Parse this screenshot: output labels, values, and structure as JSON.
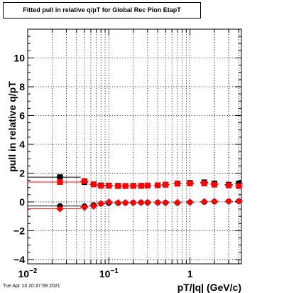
{
  "title": "Fitted pull in relative q/pT for Global Rec Pion EtapT",
  "timestamp": "Tue Apr 13 10:37:59 2021",
  "chart_data": {
    "type": "scatter",
    "title": "Fitted pull in relative q/pT for Global Rec Pion EtapT",
    "xlabel": "pT/|q| (GeV/c)",
    "ylabel": "pull in relative q/pT",
    "x_scale": "log",
    "xlim": [
      0.01,
      4.3
    ],
    "ylim": [
      -4.3,
      12
    ],
    "grid": true,
    "x_ticks": [
      {
        "value": 0.01,
        "base": "10",
        "exp": "−2"
      },
      {
        "value": 0.1,
        "base": "10",
        "exp": "−1"
      },
      {
        "value": 1,
        "base": "1",
        "exp": ""
      }
    ],
    "y_ticks": [
      -4,
      -2,
      0,
      2,
      4,
      6,
      8,
      10
    ],
    "series": [
      {
        "role": "width",
        "color": "#000000",
        "marker": "square",
        "x": [
          0.025,
          0.05,
          0.065,
          0.08,
          0.1,
          0.13,
          0.16,
          0.2,
          0.25,
          0.3,
          0.4,
          0.5,
          0.7,
          1.0,
          1.5,
          2.0,
          3.0,
          4.0
        ],
        "y": [
          1.72,
          1.38,
          1.22,
          1.15,
          1.14,
          1.12,
          1.11,
          1.12,
          1.12,
          1.14,
          1.16,
          1.2,
          1.28,
          1.32,
          1.36,
          1.28,
          1.2,
          1.28
        ]
      },
      {
        "role": "width",
        "color": "#ff0000",
        "marker": "square",
        "x": [
          0.025,
          0.05,
          0.065,
          0.08,
          0.1,
          0.13,
          0.16,
          0.2,
          0.25,
          0.3,
          0.4,
          0.5,
          0.7,
          1.0,
          1.5,
          2.0,
          3.0,
          4.0
        ],
        "y": [
          1.38,
          1.45,
          1.22,
          1.12,
          1.12,
          1.1,
          1.1,
          1.11,
          1.12,
          1.14,
          1.16,
          1.2,
          1.26,
          1.28,
          1.28,
          1.2,
          1.15,
          1.1
        ]
      },
      {
        "role": "mean",
        "color": "#000000",
        "marker": "circle",
        "x": [
          0.025,
          0.05,
          0.065,
          0.08,
          0.1,
          0.13,
          0.16,
          0.2,
          0.25,
          0.3,
          0.4,
          0.5,
          0.7,
          1.0,
          1.5,
          2.0,
          3.0,
          4.0
        ],
        "y": [
          -0.28,
          -0.3,
          -0.22,
          -0.12,
          -0.08,
          -0.08,
          -0.06,
          -0.05,
          -0.04,
          -0.04,
          -0.04,
          -0.05,
          -0.06,
          -0.02,
          0.0,
          0.02,
          0.04,
          0.05
        ]
      },
      {
        "role": "mean",
        "color": "#ff0000",
        "marker": "diamond",
        "x": [
          0.025,
          0.05,
          0.065,
          0.08,
          0.1,
          0.13,
          0.16,
          0.2,
          0.25,
          0.3,
          0.4,
          0.5,
          0.7,
          1.0,
          1.5,
          2.0,
          3.0,
          4.0
        ],
        "y": [
          -0.48,
          -0.38,
          -0.3,
          -0.12,
          0.0,
          -0.05,
          -0.05,
          -0.05,
          -0.04,
          -0.04,
          -0.04,
          -0.05,
          -0.04,
          -0.02,
          0.02,
          0.04,
          0.04,
          0.05
        ]
      }
    ]
  }
}
